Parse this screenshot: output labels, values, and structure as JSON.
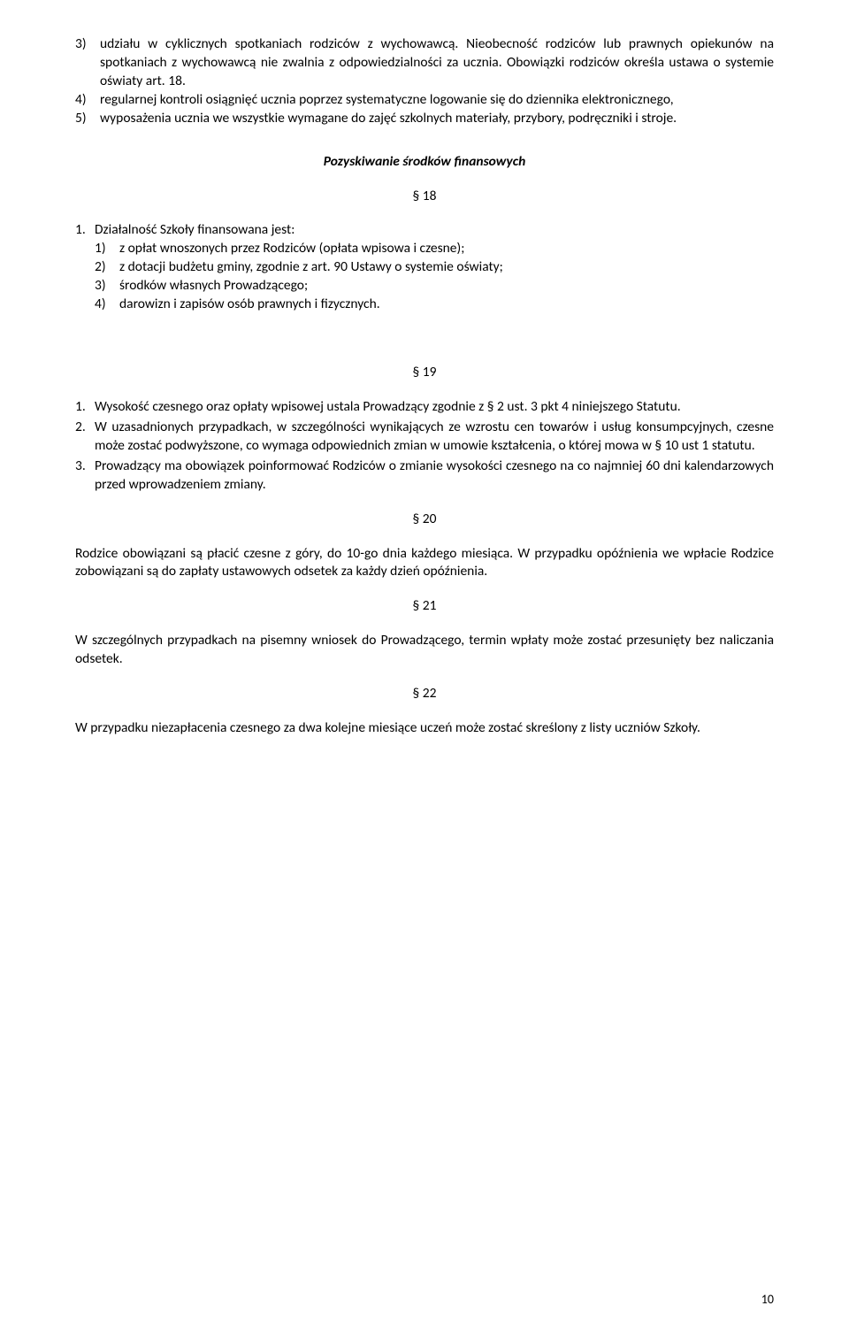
{
  "colors": {
    "background": "#ffffff",
    "text": "#000000"
  },
  "topList": {
    "items": [
      {
        "num": "3)",
        "text": "udziału w cyklicznych spotkaniach rodziców z wychowawcą. Nieobecność rodziców lub prawnych opiekunów na spotkaniach z wychowawcą nie zwalnia z odpowiedzialności za ucznia. Obowiązki rodziców określa ustawa o systemie oświaty art. 18."
      },
      {
        "num": "4)",
        "text": "regularnej kontroli osiągnięć ucznia poprzez systematyczne logowanie się do dziennika elektronicznego,"
      },
      {
        "num": "5)",
        "text": "wyposażenia ucznia we wszystkie wymagane do zajęć szkolnych materiały, przybory, podręczniki i stroje."
      }
    ]
  },
  "heading1": "Pozyskiwanie środków finansowych",
  "s18": {
    "label": "§ 18",
    "mainNum": "1.",
    "intro": "Działalność Szkoły finansowana jest:",
    "items": [
      {
        "num": "1)",
        "text": "z opłat wnoszonych przez Rodziców (opłata wpisowa i czesne);"
      },
      {
        "num": "2)",
        "text": "z dotacji budżetu gminy, zgodnie z art. 90 Ustawy o systemie oświaty;"
      },
      {
        "num": "3)",
        "text": "środków własnych Prowadzącego;"
      },
      {
        "num": "4)",
        "text": "darowizn i zapisów osób prawnych i fizycznych."
      }
    ]
  },
  "s19": {
    "label": "§ 19",
    "items": [
      {
        "num": "1.",
        "text": "Wysokość czesnego oraz opłaty wpisowej ustala Prowadzący zgodnie z § 2 ust. 3 pkt 4 niniejszego Statutu."
      },
      {
        "num": "2.",
        "text": "W uzasadnionych przypadkach, w szczególności wynikających ze wzrostu cen towarów i usług konsumpcyjnych, czesne może zostać podwyższone, co wymaga odpowiednich zmian w umowie kształcenia, o której mowa w § 10 ust 1 statutu."
      },
      {
        "num": "3.",
        "text": "Prowadzący ma obowiązek poinformować Rodziców o zmianie wysokości czesnego na co najmniej 60 dni kalendarzowych przed wprowadzeniem zmiany."
      }
    ]
  },
  "s20": {
    "label": "§ 20",
    "text": "Rodzice obowiązani są płacić czesne z góry, do 10-go dnia każdego miesiąca. W przypadku opóźnienia we wpłacie Rodzice zobowiązani są do zapłaty ustawowych odsetek za każdy dzień opóźnienia."
  },
  "s21": {
    "label": "§ 21",
    "text": "W szczególnych przypadkach na pisemny wniosek do Prowadzącego, termin wpłaty może zostać przesunięty bez naliczania odsetek."
  },
  "s22": {
    "label": "§ 22",
    "text": "W przypadku niezapłacenia czesnego za dwa kolejne miesiące uczeń może zostać skreślony z listy uczniów Szkoły."
  },
  "pageNumber": "10"
}
